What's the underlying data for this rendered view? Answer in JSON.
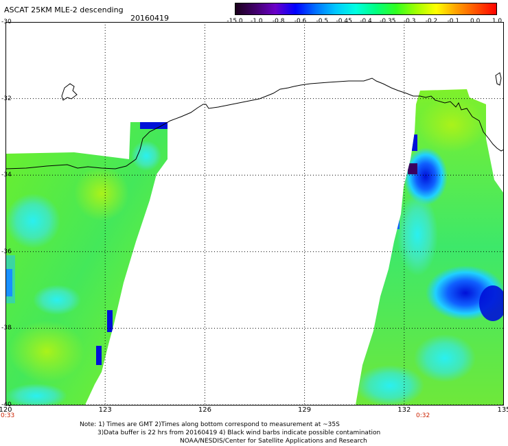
{
  "header": {
    "title": "ASCAT 25KM MLE-2 descending",
    "date": "20160419"
  },
  "colorbar": {
    "labels": [
      "-15.0",
      "-1.0",
      "-0.8",
      "-0.6",
      "-0.5",
      "-0.45",
      "-0.4",
      "-0.35",
      "-0.3",
      "-0.2",
      "-0.1",
      "0.0",
      "1.0"
    ],
    "colors": [
      "#1a001a",
      "#40006a",
      "#6a00c8",
      "#0000ff",
      "#0070ff",
      "#00c8ff",
      "#00ffe0",
      "#00ff80",
      "#30ff20",
      "#a0ff00",
      "#ffff00",
      "#ffa000",
      "#ff5000",
      "#ff0000"
    ]
  },
  "axes": {
    "latitudes": [
      "-30",
      "-32",
      "-34",
      "-36",
      "-38",
      "-40"
    ],
    "longitudes": [
      "120",
      "123",
      "126",
      "129",
      "132",
      "135"
    ],
    "lat_range": [
      -40,
      -30
    ],
    "lon_range": [
      120,
      135
    ]
  },
  "times": {
    "left": "0:33",
    "right": "0:32"
  },
  "notes": {
    "line1": "Note: 1) Times are GMT 2)Times along bottom correspond to measurement at ~35S",
    "line2": "3)Data buffer is 22 hrs from 20160419 4) Black wind barbs indicate possible contamination",
    "line3": "NOAA/NESDIS/Center for Satellite Applications and Research"
  }
}
